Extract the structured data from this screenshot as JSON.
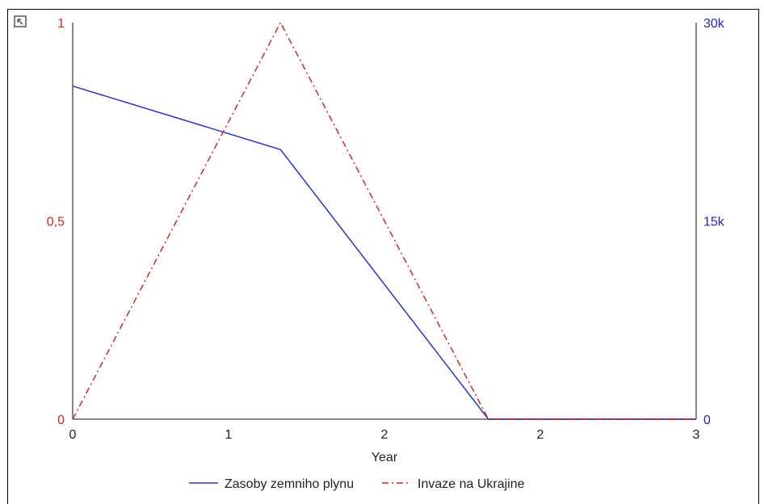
{
  "chart_data": {
    "type": "line",
    "xlabel": "Year",
    "x_range": [
      0,
      3
    ],
    "x_tick_labels": [
      {
        "value": 0,
        "label": "0"
      },
      {
        "value": 0.75,
        "label": "1"
      },
      {
        "value": 1.5,
        "label": "2"
      },
      {
        "value": 2.25,
        "label": "2"
      },
      {
        "value": 3,
        "label": "3"
      }
    ],
    "y_left": {
      "range": [
        0,
        1
      ],
      "tick_labels": [
        {
          "value": 0,
          "label": "0"
        },
        {
          "value": 0.5,
          "label": "0,5"
        },
        {
          "value": 1,
          "label": "1"
        }
      ],
      "color": "#d22"
    },
    "y_right": {
      "range": [
        0,
        30000
      ],
      "tick_labels": [
        {
          "value": 0,
          "label": "0"
        },
        {
          "value": 15000,
          "label": "15k"
        },
        {
          "value": 30000,
          "label": "30k"
        }
      ],
      "color": "#22c"
    },
    "series": [
      {
        "name": "Zasoby zemniho plynu",
        "axis": "right",
        "style": "solid",
        "color": "#2233dd",
        "x": [
          0,
          1,
          2,
          3
        ],
        "y": [
          25200,
          20400,
          0,
          0
        ]
      },
      {
        "name": "Invaze na Ukrajine",
        "axis": "left",
        "style": "dashdot",
        "color": "#dd2222",
        "x": [
          0,
          1,
          2,
          3
        ],
        "y": [
          0,
          1,
          0,
          0
        ]
      }
    ],
    "legend_position": "bottom",
    "grid": false
  },
  "icons": {
    "corner": "collapse-icon"
  }
}
